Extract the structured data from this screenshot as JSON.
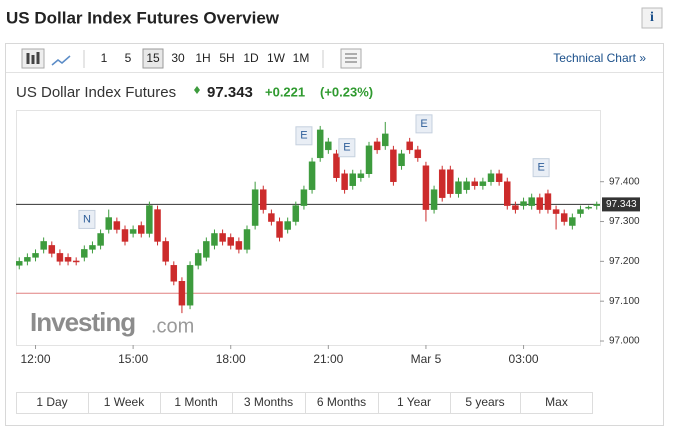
{
  "header": {
    "title": "US Dollar Index Futures Overview",
    "info": "i",
    "instrument": "US Dollar Index Futures",
    "change": "+0.221",
    "change_pct": "(+0.23%)"
  },
  "toolbar": {
    "intervals": [
      "1",
      "5",
      "15",
      "30",
      "1H",
      "5H",
      "1D",
      "1W",
      "1M"
    ],
    "selected": 2,
    "link": "Technical Chart »"
  },
  "logo": {
    "name": "Investing",
    "suffix": ".com"
  },
  "ranges": [
    "1 Day",
    "1 Week",
    "1 Month",
    "3 Months",
    "6 Months",
    "1 Year",
    "5 years",
    "Max"
  ],
  "chart_data": {
    "type": "candlestick",
    "x": [
      11.5,
      11.75,
      12,
      12.25,
      12.5,
      12.75,
      13,
      13.25,
      13.5,
      13.75,
      14,
      14.25,
      14.5,
      14.75,
      15,
      15.25,
      15.5,
      15.75,
      16,
      16.25,
      16.5,
      16.75,
      17,
      17.25,
      17.5,
      17.75,
      18,
      18.25,
      18.5,
      18.75,
      19,
      19.25,
      19.5,
      19.75,
      20,
      20.25,
      20.5,
      20.75,
      21,
      21.25,
      21.5,
      21.75,
      22,
      22.25,
      22.5,
      22.75,
      23,
      23.25,
      23.5,
      23.75,
      24,
      24.25,
      24.5,
      24.75,
      25,
      25.25,
      25.5,
      25.75,
      26,
      26.25,
      26.5,
      26.75,
      27,
      27.25,
      27.5,
      27.75,
      28,
      28.25,
      28.5,
      28.75,
      29,
      29.25
    ],
    "open": [
      97.19,
      97.2,
      97.21,
      97.23,
      97.24,
      97.22,
      97.21,
      97.201,
      97.21,
      97.23,
      97.24,
      97.28,
      97.3,
      97.28,
      97.27,
      97.29,
      97.27,
      97.33,
      97.25,
      97.19,
      97.15,
      97.09,
      97.19,
      97.21,
      97.24,
      97.27,
      97.26,
      97.25,
      97.23,
      97.29,
      97.38,
      97.32,
      97.3,
      97.28,
      97.3,
      97.34,
      97.38,
      97.46,
      97.48,
      97.47,
      97.42,
      97.39,
      97.41,
      97.42,
      97.5,
      97.49,
      97.48,
      97.44,
      97.5,
      97.48,
      97.44,
      97.33,
      97.43,
      97.43,
      97.37,
      97.38,
      97.4,
      97.39,
      97.4,
      97.42,
      97.4,
      97.34,
      97.34,
      97.34,
      97.36,
      97.37,
      97.33,
      97.32,
      97.29,
      97.32,
      97.334,
      97.34
    ],
    "high": [
      97.21,
      97.22,
      97.23,
      97.26,
      97.25,
      97.23,
      97.22,
      97.21,
      97.24,
      97.25,
      97.28,
      97.33,
      97.31,
      97.29,
      97.29,
      97.3,
      97.35,
      97.34,
      97.26,
      97.2,
      97.16,
      97.2,
      97.23,
      97.26,
      97.28,
      97.28,
      97.27,
      97.26,
      97.29,
      97.4,
      97.39,
      97.33,
      97.31,
      97.31,
      97.35,
      97.39,
      97.46,
      97.54,
      97.51,
      97.48,
      97.43,
      97.43,
      97.43,
      97.5,
      97.51,
      97.55,
      97.49,
      97.48,
      97.51,
      97.49,
      97.45,
      97.39,
      97.44,
      97.44,
      97.41,
      97.41,
      97.41,
      97.41,
      97.43,
      97.43,
      97.41,
      97.35,
      97.36,
      97.37,
      97.37,
      97.38,
      97.34,
      97.33,
      97.32,
      97.34,
      97.34,
      97.35
    ],
    "low": [
      97.18,
      97.19,
      97.2,
      97.22,
      97.21,
      97.19,
      97.19,
      97.19,
      97.2,
      97.22,
      97.23,
      97.27,
      97.27,
      97.24,
      97.26,
      97.26,
      97.26,
      97.24,
      97.19,
      97.14,
      97.07,
      97.08,
      97.18,
      97.2,
      97.23,
      97.24,
      97.23,
      97.22,
      97.22,
      97.28,
      97.32,
      97.29,
      97.25,
      97.27,
      97.29,
      97.33,
      97.37,
      97.45,
      97.47,
      97.4,
      97.37,
      97.38,
      97.4,
      97.41,
      97.47,
      97.48,
      97.39,
      97.43,
      97.47,
      97.45,
      97.3,
      97.32,
      97.35,
      97.36,
      97.36,
      97.37,
      97.38,
      97.38,
      97.39,
      97.39,
      97.33,
      97.32,
      97.33,
      97.33,
      97.32,
      97.32,
      97.28,
      97.29,
      97.28,
      97.31,
      97.33,
      97.33
    ],
    "close": [
      97.2,
      97.21,
      97.22,
      97.25,
      97.22,
      97.2,
      97.2,
      97.199,
      97.23,
      97.24,
      97.27,
      97.31,
      97.28,
      97.25,
      97.28,
      97.27,
      97.34,
      97.25,
      97.2,
      97.15,
      97.09,
      97.19,
      97.22,
      97.25,
      97.27,
      97.25,
      97.24,
      97.23,
      97.28,
      97.38,
      97.33,
      97.3,
      97.26,
      97.3,
      97.34,
      97.38,
      97.45,
      97.53,
      97.5,
      97.41,
      97.38,
      97.42,
      97.42,
      97.49,
      97.48,
      97.52,
      97.4,
      97.47,
      97.48,
      97.46,
      97.33,
      97.38,
      97.36,
      97.37,
      97.4,
      97.4,
      97.39,
      97.4,
      97.42,
      97.4,
      97.34,
      97.33,
      97.35,
      97.36,
      97.33,
      97.33,
      97.32,
      97.3,
      97.31,
      97.33,
      97.336,
      97.343
    ],
    "up_color": "#3d9b3d",
    "down_color": "#cc2b2b",
    "last_price": 97.343,
    "prev_close": 97.12,
    "events": [
      {
        "label": "N",
        "x": 13.58
      },
      {
        "label": "E",
        "x": 20.25
      },
      {
        "label": "E",
        "x": 21.57
      },
      {
        "label": "E",
        "x": 23.94
      },
      {
        "label": "E",
        "x": 27.54
      }
    ],
    "xlim": [
      11.4,
      29.35
    ],
    "xticks": [
      {
        "value": 12,
        "label": "12:00"
      },
      {
        "value": 15,
        "label": "15:00"
      },
      {
        "value": 18,
        "label": "18:00"
      },
      {
        "value": 21,
        "label": "21:00"
      },
      {
        "value": 24,
        "label": "Mar 5"
      },
      {
        "value": 27,
        "label": "03:00"
      }
    ],
    "ylim": [
      96.99,
      97.58
    ],
    "yticks": [
      {
        "value": 97,
        "label": "97.000"
      },
      {
        "value": 97.1,
        "label": "97.100"
      },
      {
        "value": 97.2,
        "label": "97.200"
      },
      {
        "value": 97.3,
        "label": "97.300"
      },
      {
        "value": 97.4,
        "label": "97.400"
      }
    ]
  }
}
